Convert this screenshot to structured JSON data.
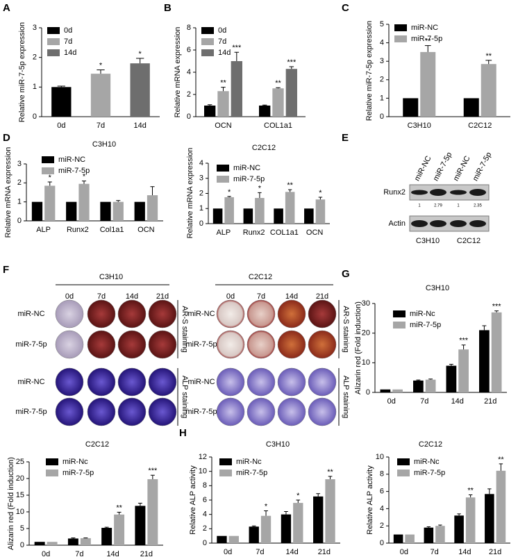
{
  "chart_data": [
    {
      "type": "bar",
      "panel": "A",
      "ylabel": "Relative miR-7-5p expression",
      "categories": [
        "0d",
        "7d",
        "14d"
      ],
      "values": [
        1,
        1.45,
        1.8
      ],
      "errors": [
        0.03,
        0.13,
        0.17
      ],
      "stars": [
        null,
        "*",
        "*"
      ],
      "colors": [
        "#000000",
        "#a6a6a6",
        "#6e6e6e"
      ],
      "ylim": [
        0,
        3
      ],
      "yticks": [
        0,
        1,
        2,
        3
      ]
    },
    {
      "type": "bar",
      "panel": "B",
      "ylabel": "Relative mRNA expression",
      "categories": [
        "OCN",
        "COL1a1"
      ],
      "series": [
        {
          "name": "0d",
          "color": "#000000",
          "values": [
            1,
            1
          ],
          "errors": [
            0.08,
            0.05
          ],
          "stars": [
            null,
            null
          ]
        },
        {
          "name": "7d",
          "color": "#a6a6a6",
          "values": [
            2.3,
            2.55
          ],
          "errors": [
            0.35,
            0.06
          ],
          "stars": [
            "**",
            "**"
          ]
        },
        {
          "name": "14d",
          "color": "#6e6e6e",
          "values": [
            5.0,
            4.3
          ],
          "errors": [
            0.8,
            0.2
          ],
          "stars": [
            "***",
            "***"
          ]
        }
      ],
      "ylim": [
        0,
        8
      ],
      "yticks": [
        0,
        2,
        4,
        6,
        8
      ]
    },
    {
      "type": "bar",
      "panel": "C",
      "ylabel": "Relative miR-7-5p expression",
      "categories": [
        "C3H10",
        "C2C12"
      ],
      "series": [
        {
          "name": "miR-NC",
          "color": "#000000",
          "values": [
            1,
            1
          ],
          "errors": [
            null,
            null
          ],
          "stars": [
            null,
            null
          ]
        },
        {
          "name": "miR-7-5p",
          "color": "#a6a6a6",
          "values": [
            3.5,
            2.85
          ],
          "errors": [
            0.35,
            0.2
          ],
          "stars": [
            "**",
            "**"
          ]
        }
      ],
      "ylim": [
        0,
        5
      ],
      "yticks": [
        0,
        1,
        2,
        3,
        4,
        5
      ]
    },
    {
      "type": "bar",
      "panel": "D",
      "title": "C3H10",
      "ylabel": "Relative mRNA expression",
      "categories": [
        "ALP",
        "Runx2",
        "Col1a1",
        "OCN"
      ],
      "series": [
        {
          "name": "miR-NC",
          "color": "#000000",
          "values": [
            1,
            1,
            1,
            1
          ],
          "errors": [
            null,
            null,
            null,
            null
          ],
          "stars": [
            null,
            null,
            null,
            null
          ]
        },
        {
          "name": "miR-7-5p",
          "color": "#a6a6a6",
          "values": [
            1.85,
            1.95,
            1.0,
            1.35
          ],
          "errors": [
            0.2,
            0.15,
            0.07,
            0.45
          ],
          "stars": [
            "*",
            "*",
            null,
            null
          ]
        }
      ],
      "ylim": [
        0,
        3
      ],
      "yticks": [
        0,
        1,
        2,
        3
      ]
    },
    {
      "type": "bar",
      "title": "C2C12",
      "ylabel": "Relative mRNA expression",
      "categories": [
        "ALP",
        "Runx2",
        "COL1a1",
        "OCN"
      ],
      "series": [
        {
          "name": "miR-NC",
          "color": "#000000",
          "values": [
            1,
            1,
            1,
            1
          ],
          "errors": [
            null,
            null,
            null,
            null
          ],
          "stars": [
            null,
            null,
            null,
            null
          ]
        },
        {
          "name": "miR-7-5p",
          "color": "#a6a6a6",
          "values": [
            1.75,
            1.7,
            2.1,
            1.6
          ],
          "errors": [
            0.05,
            0.35,
            0.15,
            0.15
          ],
          "stars": [
            "*",
            "*",
            "**",
            "*"
          ]
        }
      ],
      "ylim": [
        0,
        4
      ],
      "yticks": [
        0,
        1,
        2,
        3,
        4
      ]
    },
    {
      "type": "bar",
      "panel": "G",
      "title": "C3H10",
      "ylabel": "Alizarin red (Fold induction)",
      "categories": [
        "0d",
        "7d",
        "14d",
        "21d"
      ],
      "series": [
        {
          "name": "miR-Nc",
          "color": "#000000",
          "values": [
            1,
            4,
            9,
            21
          ],
          "errors": [
            null,
            0.2,
            0.5,
            1.5
          ],
          "stars": [
            null,
            null,
            null,
            null
          ]
        },
        {
          "name": "miR-7-5p",
          "color": "#a6a6a6",
          "values": [
            1,
            4.3,
            14.5,
            27
          ],
          "errors": [
            null,
            0.2,
            1.5,
            0.5
          ],
          "stars": [
            null,
            null,
            "***",
            "***"
          ]
        }
      ],
      "ylim": [
        0,
        30
      ],
      "yticks": [
        0,
        10,
        20,
        30
      ]
    },
    {
      "type": "bar",
      "title": "C2C12",
      "ylabel": "Alizarin red (Fold induction)",
      "categories": [
        "0d",
        "7d",
        "14d",
        "21d"
      ],
      "series": [
        {
          "name": "miR-Nc",
          "color": "#000000",
          "values": [
            1,
            2,
            5.2,
            11.8
          ],
          "errors": [
            null,
            0.2,
            0.2,
            0.8
          ],
          "stars": [
            null,
            null,
            null,
            null
          ]
        },
        {
          "name": "miR-7-5p",
          "color": "#a6a6a6",
          "values": [
            1,
            2.1,
            9.2,
            19.8
          ],
          "errors": [
            null,
            0.1,
            0.7,
            1.2
          ],
          "stars": [
            null,
            null,
            "**",
            "***"
          ]
        }
      ],
      "ylim": [
        0,
        25
      ],
      "yticks": [
        0,
        5,
        10,
        15,
        20,
        25
      ]
    },
    {
      "type": "bar",
      "panel": "H",
      "title": "C3H10",
      "ylabel": "Relative ALP activity",
      "categories": [
        "0d",
        "7d",
        "14d",
        "21d"
      ],
      "series": [
        {
          "name": "miR-Nc",
          "color": "#000000",
          "values": [
            1,
            2.3,
            4.0,
            6.5
          ],
          "errors": [
            null,
            0.1,
            0.4,
            0.4
          ],
          "stars": [
            null,
            null,
            null,
            null
          ]
        },
        {
          "name": "miR-7-5p",
          "color": "#a6a6a6",
          "values": [
            1,
            3.8,
            5.6,
            8.9
          ],
          "errors": [
            null,
            0.7,
            0.4,
            0.4
          ],
          "stars": [
            null,
            "*",
            "*",
            "**"
          ]
        }
      ],
      "ylim": [
        0,
        12
      ],
      "yticks": [
        0,
        2,
        4,
        6,
        8,
        10,
        12
      ]
    },
    {
      "type": "bar",
      "title": "C2C12",
      "ylabel": "Relative ALP activity",
      "categories": [
        "0d",
        "7d",
        "14d",
        "21d"
      ],
      "series": [
        {
          "name": "miR-Nc",
          "color": "#000000",
          "values": [
            1,
            1.8,
            3.2,
            5.7
          ],
          "errors": [
            null,
            0.1,
            0.2,
            0.6
          ],
          "stars": [
            null,
            null,
            null,
            null
          ]
        },
        {
          "name": "miR-7-5p",
          "color": "#a6a6a6",
          "values": [
            1,
            2.0,
            5.3,
            8.4
          ],
          "errors": [
            null,
            0.1,
            0.3,
            0.8
          ],
          "stars": [
            null,
            null,
            "**",
            "**"
          ]
        }
      ],
      "ylim": [
        0,
        10
      ],
      "yticks": [
        0,
        2,
        4,
        6,
        8,
        10
      ]
    }
  ],
  "blot": {
    "panel": "E",
    "lanes": [
      "miR-NC",
      "miR-7-5p",
      "miR-NC",
      "miR-7-5p"
    ],
    "rows": [
      "Runx2",
      "Actin"
    ],
    "quantification": [
      1,
      2.79,
      1,
      2.35
    ],
    "groups": [
      "C3H10",
      "C2C12"
    ]
  },
  "staining": {
    "panel": "F",
    "groups": [
      {
        "name": "C3H10",
        "days": [
          "0d",
          "7d",
          "14d",
          "21d"
        ],
        "rows": [
          "miR-NC",
          "miR-7-5p",
          "miR-NC",
          "miR-7-5p"
        ],
        "stains": [
          "AR-S staining",
          "ALP staining"
        ]
      },
      {
        "name": "C2C12",
        "days": [
          "0d",
          "7d",
          "14d",
          "21d"
        ],
        "rows": [
          "miR-NC",
          "miR-7-5p",
          "miR-NC",
          "miR-7-5p"
        ],
        "stains": [
          "AR-S staining",
          "ALP staining"
        ]
      }
    ]
  }
}
